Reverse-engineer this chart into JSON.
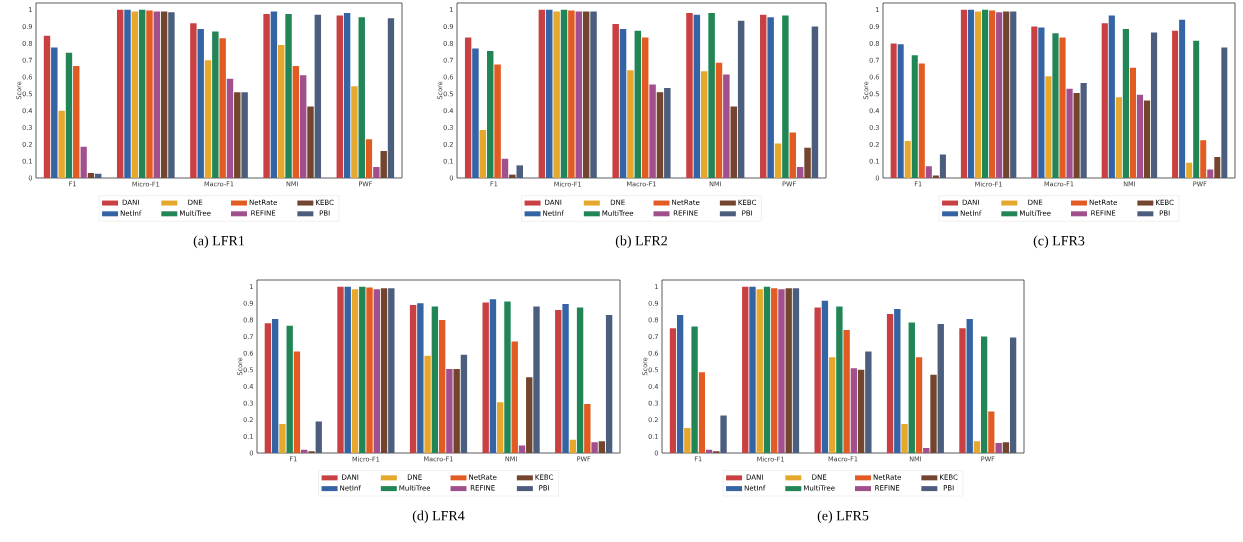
{
  "chart_data": [
    {
      "type": "bar",
      "title": "(a) LFR1",
      "ylabel": "Score",
      "categories": [
        "F1",
        "Micro-F1",
        "Macro-F1",
        "NMI",
        "PWF"
      ],
      "ylim": [
        0,
        1.04
      ],
      "yticks": [
        0,
        0.1,
        0.2,
        0.3,
        0.4,
        0.5,
        0.6,
        0.7,
        0.8,
        0.9,
        1
      ],
      "legend": "bottom",
      "grid": false,
      "series": [
        {
          "name": "DANI",
          "color": "#c94043",
          "values": [
            0.845,
            1.0,
            0.92,
            0.975,
            0.965
          ]
        },
        {
          "name": "NetInf",
          "color": "#3464a4",
          "values": [
            0.775,
            1.0,
            0.885,
            0.99,
            0.98
          ]
        },
        {
          "name": "DNE",
          "color": "#e6a82c",
          "values": [
            0.4,
            0.99,
            0.7,
            0.79,
            0.545
          ]
        },
        {
          "name": "MultiTree",
          "color": "#218556",
          "values": [
            0.745,
            1.0,
            0.87,
            0.975,
            0.955
          ]
        },
        {
          "name": "NetRate",
          "color": "#e25b22",
          "values": [
            0.665,
            0.995,
            0.83,
            0.665,
            0.23
          ]
        },
        {
          "name": "REFINE",
          "color": "#a14f8d",
          "values": [
            0.185,
            0.99,
            0.59,
            0.61,
            0.065
          ]
        },
        {
          "name": "KEBC",
          "color": "#73452f",
          "values": [
            0.03,
            0.99,
            0.51,
            0.425,
            0.16
          ]
        },
        {
          "name": "PBI",
          "color": "#4c5e7e",
          "values": [
            0.025,
            0.985,
            0.51,
            0.97,
            0.95
          ]
        }
      ]
    },
    {
      "type": "bar",
      "title": "(b) LFR2",
      "ylabel": "Score",
      "categories": [
        "F1",
        "Micro-F1",
        "Macro-F1",
        "NMI",
        "PWF"
      ],
      "ylim": [
        0,
        1.04
      ],
      "yticks": [
        0,
        0.1,
        0.2,
        0.3,
        0.4,
        0.5,
        0.6,
        0.7,
        0.8,
        0.9,
        1
      ],
      "legend": "bottom",
      "grid": false,
      "series": [
        {
          "name": "DANI",
          "color": "#c94043",
          "values": [
            0.835,
            1.0,
            0.915,
            0.98,
            0.97
          ]
        },
        {
          "name": "NetInf",
          "color": "#3464a4",
          "values": [
            0.77,
            1.0,
            0.885,
            0.97,
            0.955
          ]
        },
        {
          "name": "DNE",
          "color": "#e6a82c",
          "values": [
            0.285,
            0.99,
            0.64,
            0.635,
            0.205
          ]
        },
        {
          "name": "MultiTree",
          "color": "#218556",
          "values": [
            0.755,
            1.0,
            0.875,
            0.98,
            0.965
          ]
        },
        {
          "name": "NetRate",
          "color": "#e25b22",
          "values": [
            0.675,
            0.995,
            0.835,
            0.685,
            0.27
          ]
        },
        {
          "name": "REFINE",
          "color": "#a14f8d",
          "values": [
            0.115,
            0.99,
            0.555,
            0.615,
            0.065
          ]
        },
        {
          "name": "KEBC",
          "color": "#73452f",
          "values": [
            0.02,
            0.99,
            0.51,
            0.425,
            0.18
          ]
        },
        {
          "name": "PBI",
          "color": "#4c5e7e",
          "values": [
            0.075,
            0.99,
            0.535,
            0.935,
            0.9
          ]
        }
      ]
    },
    {
      "type": "bar",
      "title": "(c) LFR3",
      "ylabel": "Score",
      "categories": [
        "F1",
        "Micro-F1",
        "Macro-F1",
        "NMI",
        "PWF"
      ],
      "ylim": [
        0,
        1.04
      ],
      "yticks": [
        0,
        0.1,
        0.2,
        0.3,
        0.4,
        0.5,
        0.6,
        0.7,
        0.8,
        0.9,
        1
      ],
      "legend": "bottom",
      "grid": false,
      "series": [
        {
          "name": "DANI",
          "color": "#c94043",
          "values": [
            0.8,
            1.0,
            0.9,
            0.92,
            0.875
          ]
        },
        {
          "name": "NetInf",
          "color": "#3464a4",
          "values": [
            0.795,
            1.0,
            0.895,
            0.965,
            0.94
          ]
        },
        {
          "name": "DNE",
          "color": "#e6a82c",
          "values": [
            0.22,
            0.99,
            0.605,
            0.48,
            0.09
          ]
        },
        {
          "name": "MultiTree",
          "color": "#218556",
          "values": [
            0.73,
            1.0,
            0.86,
            0.885,
            0.815
          ]
        },
        {
          "name": "NetRate",
          "color": "#e25b22",
          "values": [
            0.68,
            0.995,
            0.835,
            0.655,
            0.225
          ]
        },
        {
          "name": "REFINE",
          "color": "#a14f8d",
          "values": [
            0.07,
            0.985,
            0.53,
            0.495,
            0.05
          ]
        },
        {
          "name": "KEBC",
          "color": "#73452f",
          "values": [
            0.015,
            0.99,
            0.505,
            0.46,
            0.125
          ]
        },
        {
          "name": "PBI",
          "color": "#4c5e7e",
          "values": [
            0.14,
            0.99,
            0.565,
            0.865,
            0.775
          ]
        }
      ]
    },
    {
      "type": "bar",
      "title": "(d) LFR4",
      "ylabel": "Score",
      "categories": [
        "F1",
        "Micro-F1",
        "Macro-F1",
        "NMI",
        "PWF"
      ],
      "ylim": [
        0,
        1.04
      ],
      "yticks": [
        0,
        0.1,
        0.2,
        0.3,
        0.4,
        0.5,
        0.6,
        0.7,
        0.8,
        0.9,
        1
      ],
      "legend": "bottom",
      "grid": false,
      "series": [
        {
          "name": "DANI",
          "color": "#c94043",
          "values": [
            0.78,
            1.0,
            0.89,
            0.905,
            0.86
          ]
        },
        {
          "name": "NetInf",
          "color": "#3464a4",
          "values": [
            0.805,
            1.0,
            0.9,
            0.925,
            0.895
          ]
        },
        {
          "name": "DNE",
          "color": "#e6a82c",
          "values": [
            0.175,
            0.985,
            0.585,
            0.305,
            0.08
          ]
        },
        {
          "name": "MultiTree",
          "color": "#218556",
          "values": [
            0.765,
            1.0,
            0.88,
            0.91,
            0.875
          ]
        },
        {
          "name": "NetRate",
          "color": "#e25b22",
          "values": [
            0.61,
            0.995,
            0.8,
            0.67,
            0.295
          ]
        },
        {
          "name": "REFINE",
          "color": "#a14f8d",
          "values": [
            0.02,
            0.985,
            0.505,
            0.045,
            0.065
          ]
        },
        {
          "name": "KEBC",
          "color": "#73452f",
          "values": [
            0.01,
            0.99,
            0.505,
            0.455,
            0.07
          ]
        },
        {
          "name": "PBI",
          "color": "#4c5e7e",
          "values": [
            0.19,
            0.99,
            0.59,
            0.88,
            0.83
          ]
        }
      ]
    },
    {
      "type": "bar",
      "title": "(e) LFR5",
      "ylabel": "Score",
      "categories": [
        "F1",
        "Micro-F1",
        "Macro-F1",
        "NMI",
        "PWF"
      ],
      "ylim": [
        0,
        1.04
      ],
      "yticks": [
        0,
        0.1,
        0.2,
        0.3,
        0.4,
        0.5,
        0.6,
        0.7,
        0.8,
        0.9,
        1
      ],
      "legend": "bottom",
      "grid": false,
      "series": [
        {
          "name": "DANI",
          "color": "#c94043",
          "values": [
            0.75,
            1.0,
            0.875,
            0.835,
            0.75
          ]
        },
        {
          "name": "NetInf",
          "color": "#3464a4",
          "values": [
            0.83,
            1.0,
            0.915,
            0.865,
            0.805
          ]
        },
        {
          "name": "DNE",
          "color": "#e6a82c",
          "values": [
            0.15,
            0.985,
            0.575,
            0.175,
            0.07
          ]
        },
        {
          "name": "MultiTree",
          "color": "#218556",
          "values": [
            0.76,
            1.0,
            0.88,
            0.785,
            0.7
          ]
        },
        {
          "name": "NetRate",
          "color": "#e25b22",
          "values": [
            0.485,
            0.99,
            0.74,
            0.575,
            0.25
          ]
        },
        {
          "name": "REFINE",
          "color": "#a14f8d",
          "values": [
            0.02,
            0.985,
            0.51,
            0.03,
            0.06
          ]
        },
        {
          "name": "KEBC",
          "color": "#73452f",
          "values": [
            0.01,
            0.99,
            0.5,
            0.47,
            0.065
          ]
        },
        {
          "name": "PBI",
          "color": "#4c5e7e",
          "values": [
            0.225,
            0.99,
            0.61,
            0.775,
            0.695
          ]
        }
      ]
    }
  ]
}
